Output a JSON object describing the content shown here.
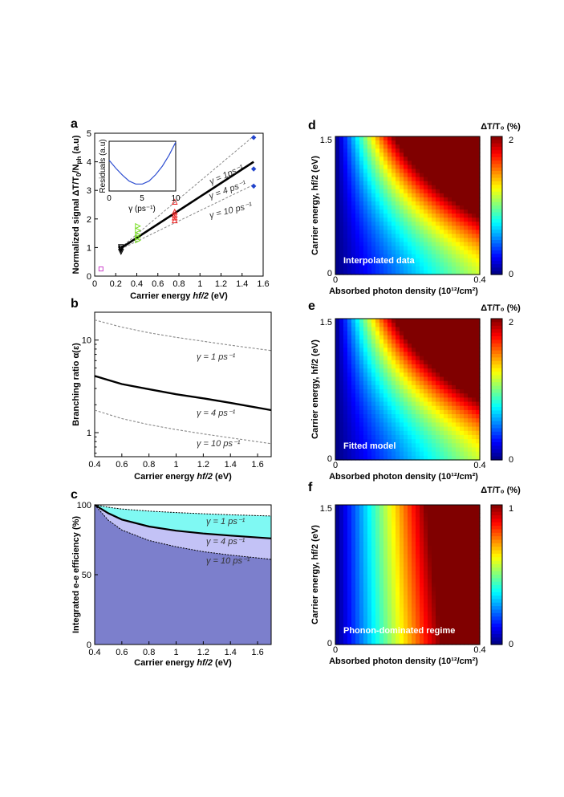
{
  "colors": {
    "inset_curve": "#2f4fd1",
    "fill_1ps": "#7ff9f3",
    "fill_4ps": "#c3c2f6",
    "fill_10ps": "#7c7fcc",
    "model_line": "#000000",
    "dashed_line": "#888888",
    "colormap": "jet"
  },
  "chart_data": [
    {
      "panel": "a",
      "type": "scatter",
      "xlabel": "Carrier energy hf/2 (eV)",
      "ylabel": "Normalized signal ΔT/T₀/Nₚh (a.u)",
      "xlim": [
        0,
        1.6
      ],
      "ylim": [
        0,
        5
      ],
      "xticks": [
        "0",
        "0.2",
        "0.4",
        "0.6",
        "0.8",
        "1",
        "1.2",
        "1.4",
        "1.6"
      ],
      "yticks": [
        "0",
        "1",
        "2",
        "3",
        "4",
        "5"
      ],
      "series": [
        {
          "marker": "square",
          "color": "#cc44cc",
          "points": [
            [
              0.06,
              0.25
            ]
          ]
        },
        {
          "marker": "triangle-down",
          "color": "#000000",
          "points": [
            [
              0.25,
              0.85
            ],
            [
              0.25,
              0.92
            ],
            [
              0.25,
              0.97
            ],
            [
              0.25,
              1.02
            ]
          ]
        },
        {
          "marker": "triangle-right",
          "color": "#77dd22",
          "points": [
            [
              0.41,
              1.25
            ],
            [
              0.41,
              1.35
            ],
            [
              0.41,
              1.45
            ],
            [
              0.41,
              1.6
            ],
            [
              0.41,
              1.75
            ]
          ]
        },
        {
          "marker": "triangle-up",
          "color": "#ee2222",
          "points": [
            [
              0.76,
              1.95
            ],
            [
              0.76,
              2.05
            ],
            [
              0.76,
              2.15
            ],
            [
              0.76,
              2.25
            ],
            [
              0.76,
              2.6
            ]
          ]
        },
        {
          "marker": "diamond",
          "color": "#2244cc",
          "points": [
            [
              1.51,
              3.15
            ],
            [
              1.51,
              3.75
            ],
            [
              1.51,
              4.85
            ]
          ]
        }
      ],
      "model_lines": [
        {
          "label": "γ = 1ps⁻¹",
          "style": "dashed",
          "points": [
            [
              0.25,
              1.0
            ],
            [
              1.51,
              4.9
            ]
          ]
        },
        {
          "label": "γ = 4 ps⁻¹",
          "style": "solid",
          "points": [
            [
              0.25,
              0.98
            ],
            [
              1.51,
              4.0
            ]
          ]
        },
        {
          "label": "γ = 10 ps⁻¹",
          "style": "dashed",
          "points": [
            [
              0.25,
              0.95
            ],
            [
              1.51,
              3.2
            ]
          ]
        }
      ],
      "inset": {
        "xlabel": "γ (ps⁻¹)",
        "ylabel": "Residuals (a.u)",
        "xlim": [
          0,
          10
        ],
        "xticks": [
          "0",
          "5",
          "10"
        ],
        "curve": [
          [
            0,
            0.62
          ],
          [
            1,
            0.46
          ],
          [
            2,
            0.32
          ],
          [
            3,
            0.2
          ],
          [
            4,
            0.14
          ],
          [
            5,
            0.14
          ],
          [
            6,
            0.2
          ],
          [
            7,
            0.33
          ],
          [
            8,
            0.5
          ],
          [
            9,
            0.72
          ],
          [
            10,
            0.98
          ]
        ]
      }
    },
    {
      "panel": "b",
      "type": "line",
      "xlabel": "Carrier energy hf/2 (eV)",
      "ylabel": "Branching ratio α(ε)",
      "xlim": [
        0.4,
        1.7
      ],
      "ylim": [
        0.55,
        20
      ],
      "yscale": "log",
      "xticks": [
        "0.4",
        "0.6",
        "0.8",
        "1",
        "1.2",
        "1.4",
        "1.6"
      ],
      "yticks": [
        "1",
        "10"
      ],
      "series": [
        {
          "label": "γ = 1 ps⁻¹",
          "style": "dashed",
          "x": [
            0.4,
            0.6,
            0.8,
            1.0,
            1.2,
            1.4,
            1.7
          ],
          "y": [
            16.5,
            13.8,
            12.0,
            10.7,
            9.7,
            8.8,
            7.7
          ]
        },
        {
          "label": "γ = 4 ps⁻¹",
          "style": "solid",
          "x": [
            0.4,
            0.6,
            0.8,
            1.0,
            1.2,
            1.4,
            1.7
          ],
          "y": [
            4.1,
            3.35,
            2.95,
            2.6,
            2.35,
            2.1,
            1.75
          ]
        },
        {
          "label": "γ = 10 ps⁻¹",
          "style": "dashed",
          "x": [
            0.4,
            0.6,
            0.8,
            1.0,
            1.2,
            1.4,
            1.7
          ],
          "y": [
            1.75,
            1.42,
            1.22,
            1.08,
            0.97,
            0.88,
            0.76
          ]
        }
      ]
    },
    {
      "panel": "c",
      "type": "area",
      "xlabel": "Carrier energy hf/2 (eV)",
      "ylabel": "Integrated e-e efficiency (%)",
      "xlim": [
        0.4,
        1.7
      ],
      "ylim": [
        0,
        100
      ],
      "xticks": [
        "0.4",
        "0.6",
        "0.8",
        "1",
        "1.2",
        "1.4",
        "1.6"
      ],
      "yticks": [
        "0",
        "50",
        "100"
      ],
      "series": [
        {
          "label": "γ = 1 ps⁻¹",
          "x": [
            0.4,
            0.5,
            0.6,
            0.8,
            1.0,
            1.2,
            1.4,
            1.7
          ],
          "y": [
            100,
            98.3,
            97.0,
            95.5,
            94.5,
            93.6,
            92.9,
            92.0
          ]
        },
        {
          "label": "γ = 4 ps⁻¹",
          "x": [
            0.4,
            0.5,
            0.6,
            0.8,
            1.0,
            1.2,
            1.4,
            1.7
          ],
          "y": [
            100,
            94.0,
            89.5,
            84.5,
            81.5,
            79.5,
            78.0,
            76.0
          ]
        },
        {
          "label": "γ = 10 ps⁻¹",
          "x": [
            0.4,
            0.5,
            0.6,
            0.8,
            1.0,
            1.2,
            1.4,
            1.7
          ],
          "y": [
            100,
            89.0,
            82.0,
            74.5,
            70.0,
            66.5,
            64.0,
            61.0
          ]
        }
      ]
    },
    {
      "panel": "d",
      "type": "heatmap",
      "label": "Interpolated data",
      "xlabel": "Absorbed photon density (10¹²/cm²)",
      "ylabel": "Carrier energy, hf/2 (eV)",
      "xticks": [
        "0",
        "0.4"
      ],
      "yticks": [
        "0",
        "1.5"
      ],
      "colorbar": {
        "title": "ΔT/T₀ (%)",
        "ticks": [
          "0",
          "2"
        ],
        "max": 2
      },
      "scale_x": 0.19,
      "curvature": 0.9
    },
    {
      "panel": "e",
      "type": "heatmap",
      "label": "Fitted model",
      "xlabel": "Absorbed photon density (10¹²/cm²)",
      "ylabel": "Carrier energy, hf/2 (eV)",
      "xticks": [
        "0",
        "0.4"
      ],
      "yticks": [
        "0",
        "1.5"
      ],
      "colorbar": {
        "title": "ΔT/T₀ (%)",
        "ticks": [
          "0",
          "2"
        ],
        "max": 2
      },
      "scale_x": 0.19,
      "curvature": 0.9
    },
    {
      "panel": "f",
      "type": "heatmap",
      "label": "Phonon-dominated regime",
      "xlabel": "Absorbed photon density (10¹²/cm²)",
      "ylabel": "Carrier energy, hf/2 (eV)",
      "xticks": [
        "0",
        "0.4"
      ],
      "yticks": [
        "0",
        "1.5"
      ],
      "colorbar": {
        "title": "ΔT/T₀ (%)",
        "ticks": [
          "0",
          "1"
        ],
        "max": 1
      },
      "scale_x": 0.3,
      "curvature": 0.12
    }
  ]
}
